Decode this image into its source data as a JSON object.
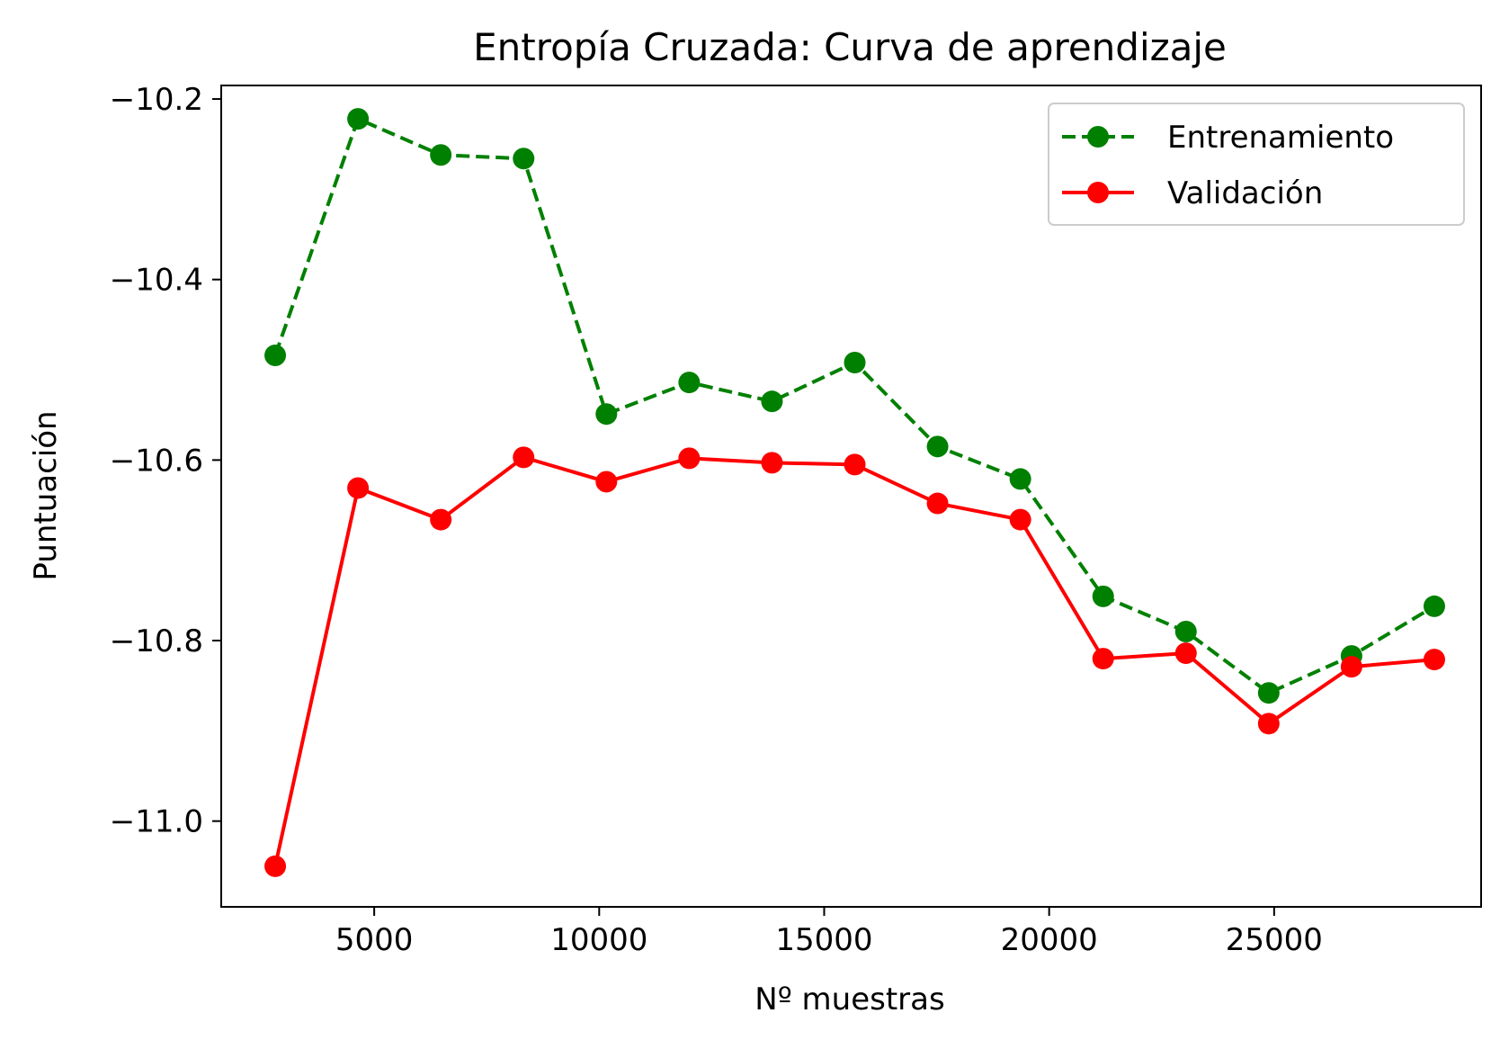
{
  "chart_data": {
    "type": "line",
    "title": "Entropía Cruzada: Curva de aprendizaje",
    "xlabel": "Nº muestras",
    "ylabel": "Puntuación",
    "xlim": [
      1600,
      29600
    ],
    "ylim": [
      -11.095,
      -10.185
    ],
    "xticks": [
      5000,
      10000,
      15000,
      20000,
      25000
    ],
    "xtick_labels": [
      "5000",
      "10000",
      "15000",
      "20000",
      "25000"
    ],
    "yticks": [
      -11.0,
      -10.8,
      -10.6,
      -10.4,
      -10.2
    ],
    "ytick_labels": [
      "−11.0",
      "−10.8",
      "−10.6",
      "−10.4",
      "−10.2"
    ],
    "grid": false,
    "legend_position": "top-right",
    "x": [
      2800,
      4640,
      6480,
      8320,
      10160,
      12000,
      13840,
      15680,
      17520,
      19360,
      21200,
      23040,
      24880,
      26720,
      28560
    ],
    "series": [
      {
        "name": "Entrenamiento",
        "color": "#008000",
        "line_style": "dashed",
        "marker": "circle",
        "values": [
          -10.484,
          -10.222,
          -10.262,
          -10.266,
          -10.549,
          -10.514,
          -10.535,
          -10.492,
          -10.585,
          -10.621,
          -10.751,
          -10.79,
          -10.858,
          -10.817,
          -10.762
        ]
      },
      {
        "name": "Validación",
        "color": "#ff0000",
        "line_style": "solid",
        "marker": "circle",
        "values": [
          -11.05,
          -10.631,
          -10.666,
          -10.597,
          -10.624,
          -10.598,
          -10.603,
          -10.605,
          -10.648,
          -10.666,
          -10.82,
          -10.814,
          -10.892,
          -10.829,
          -10.821
        ]
      }
    ]
  }
}
